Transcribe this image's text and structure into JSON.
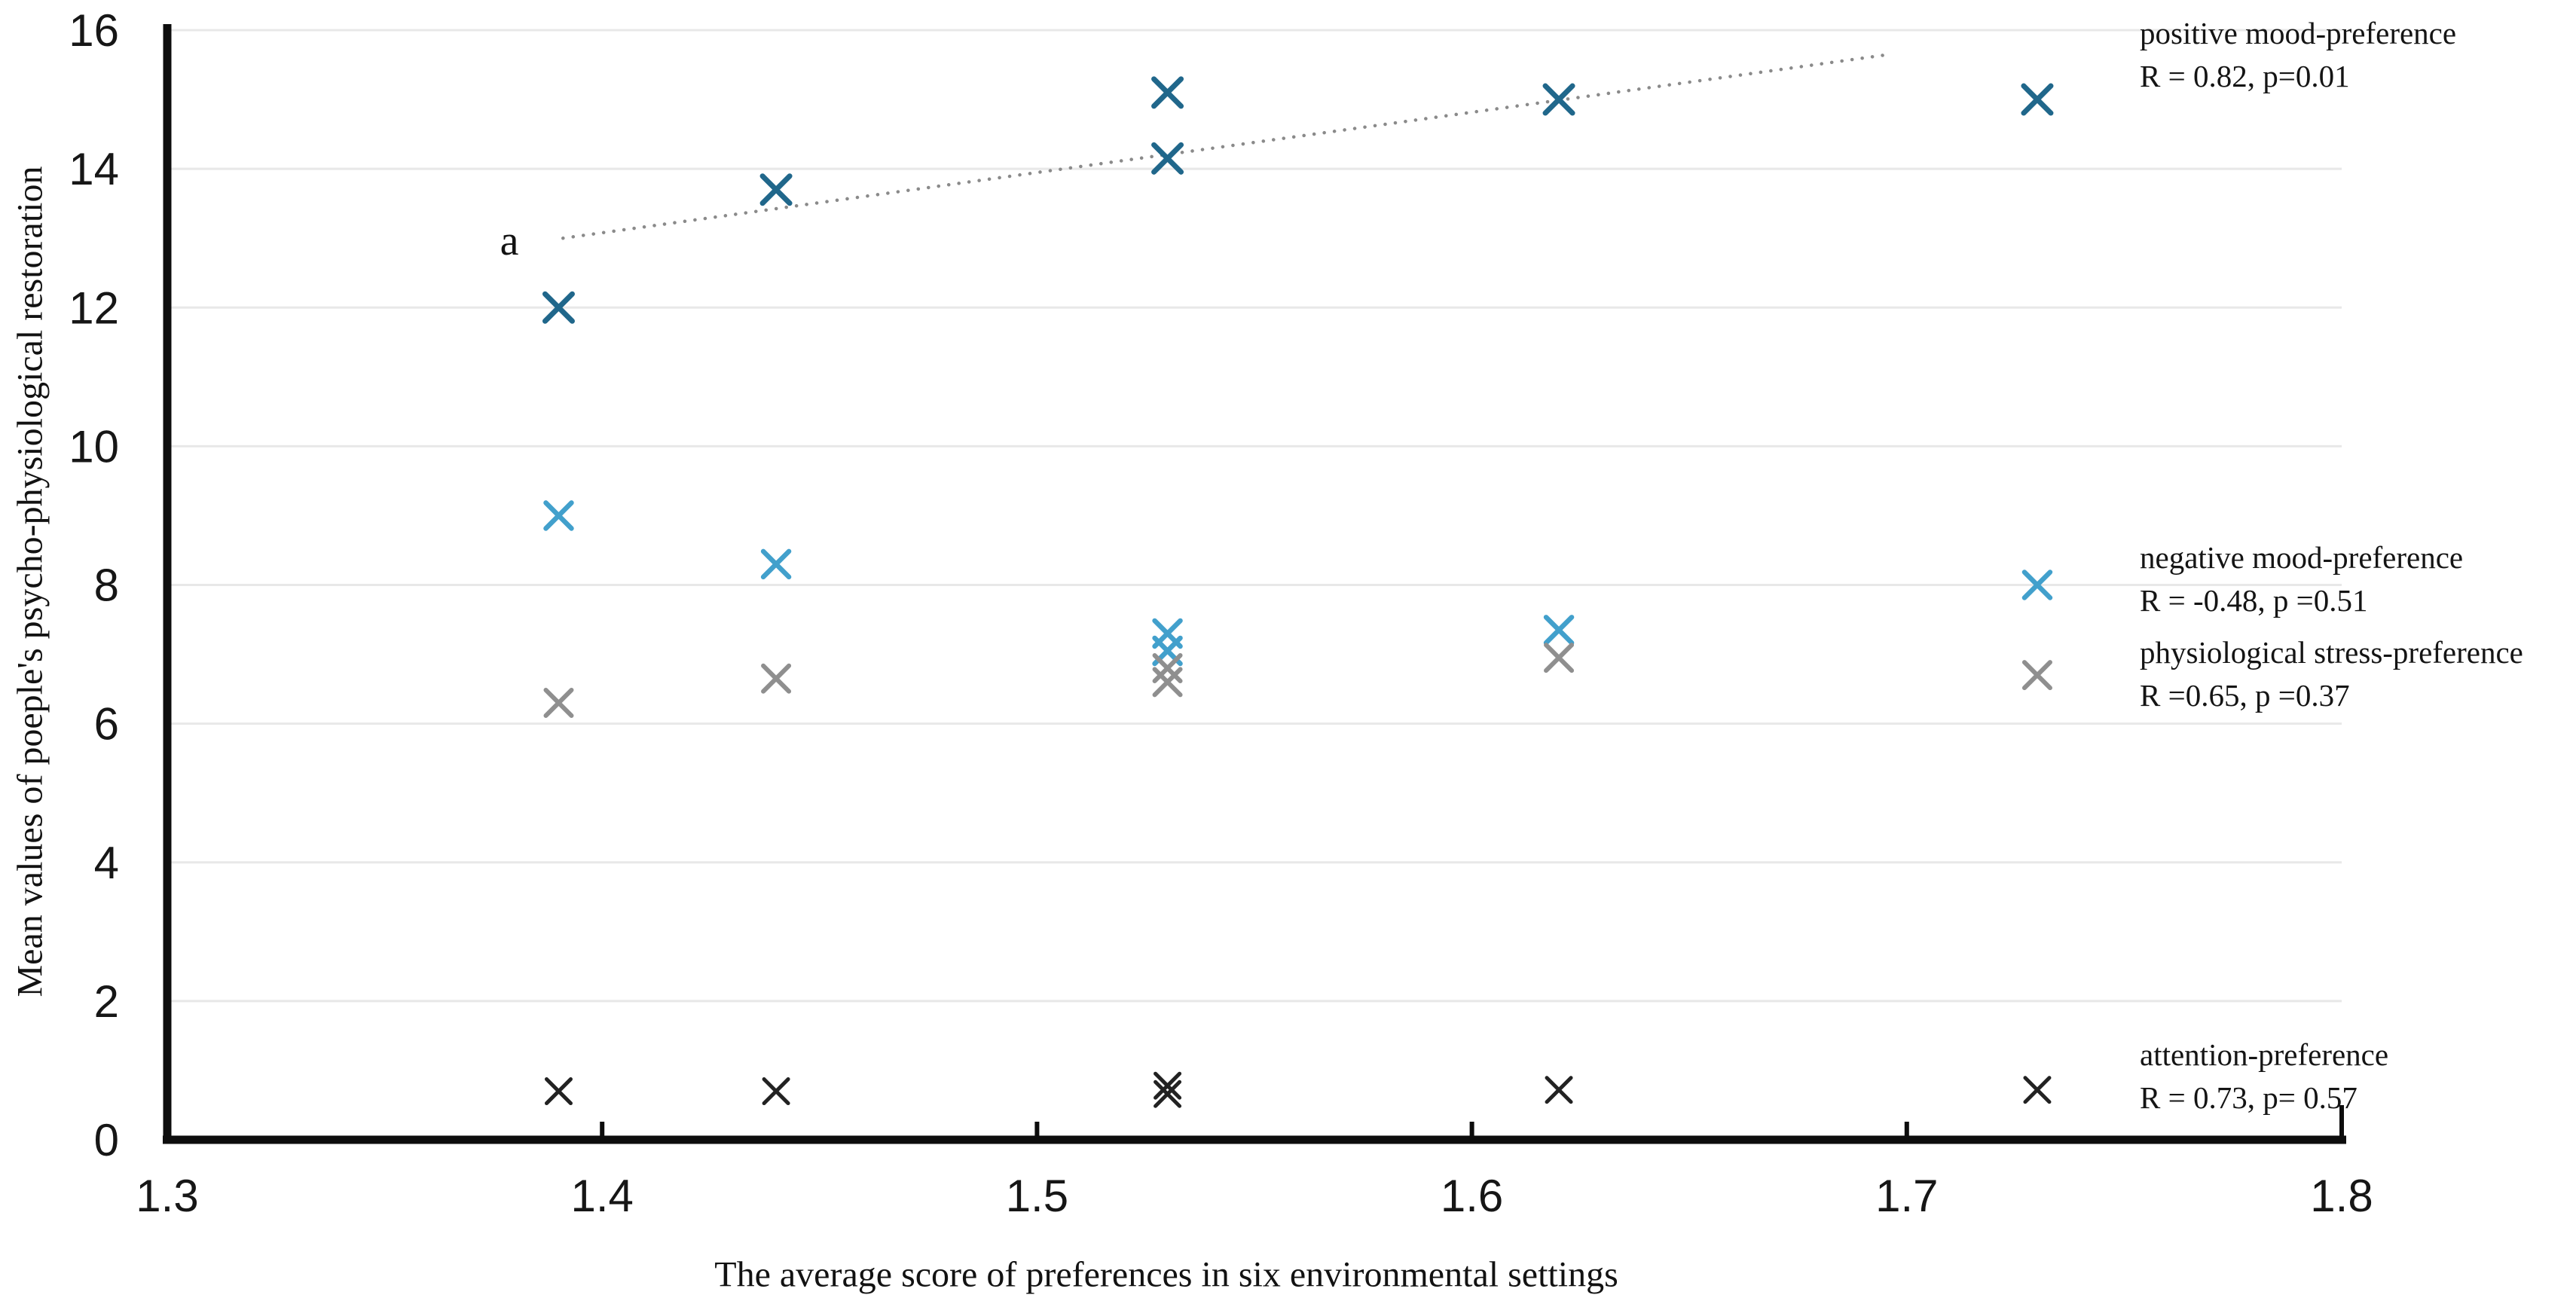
{
  "page": {
    "background": "#ffffff"
  },
  "chart_data": {
    "type": "scatter",
    "title": "",
    "xlabel": "The average score of preferences in six environmental settings",
    "ylabel": "Mean values of poeple's psycho-physiological restoration",
    "xlim": [
      1.3,
      1.8
    ],
    "ylim": [
      0,
      16
    ],
    "x_ticks": [
      "1.3",
      "1.4",
      "1.5",
      "1.6",
      "1.7",
      "1.8"
    ],
    "y_ticks": [
      "0",
      "2",
      "4",
      "6",
      "8",
      "10",
      "12",
      "14",
      "16"
    ],
    "grid": "horizontal gridlines every 2 units, light gray",
    "marker": "x",
    "legend_position": "right, outside plot",
    "colors": {
      "grid": "#e8e8e8",
      "axis": "#0d0d0d",
      "trendline": "#8a8a8a"
    },
    "series": [
      {
        "name": "positive mood-preference",
        "stats": "R = 0.82, p=0.01",
        "color": "#20678b",
        "points": [
          [
            1.39,
            12.0
          ],
          [
            1.44,
            13.7
          ],
          [
            1.53,
            15.1
          ],
          [
            1.53,
            14.15
          ],
          [
            1.62,
            15.0
          ],
          [
            1.73,
            15.0
          ]
        ]
      },
      {
        "name": "negative mood-preference",
        "stats": "R = -0.48, p =0.51",
        "color": "#42a0cc",
        "points": [
          [
            1.39,
            9.0
          ],
          [
            1.44,
            8.3
          ],
          [
            1.53,
            7.3
          ],
          [
            1.53,
            7.05
          ],
          [
            1.62,
            7.35
          ],
          [
            1.73,
            8.0
          ]
        ]
      },
      {
        "name": "physiological stress-preference",
        "stats": "R =0.65, p =0.37",
        "color": "#8f8f8f",
        "points": [
          [
            1.39,
            6.3
          ],
          [
            1.44,
            6.65
          ],
          [
            1.53,
            6.8
          ],
          [
            1.53,
            6.6
          ],
          [
            1.62,
            6.95
          ],
          [
            1.73,
            6.7
          ]
        ]
      },
      {
        "name": "attention-preference",
        "stats": "R = 0.73, p= 0.57",
        "color": "#222222",
        "points": [
          [
            1.39,
            0.7
          ],
          [
            1.44,
            0.7
          ],
          [
            1.53,
            0.78
          ],
          [
            1.53,
            0.66
          ],
          [
            1.62,
            0.72
          ],
          [
            1.73,
            0.72
          ]
        ]
      }
    ],
    "trendline": {
      "label": "a",
      "series": "positive mood-preference",
      "style": "dotted",
      "color": "#8a8a8a",
      "from": [
        1.391,
        13.0
      ],
      "to": [
        1.696,
        15.65
      ]
    }
  }
}
